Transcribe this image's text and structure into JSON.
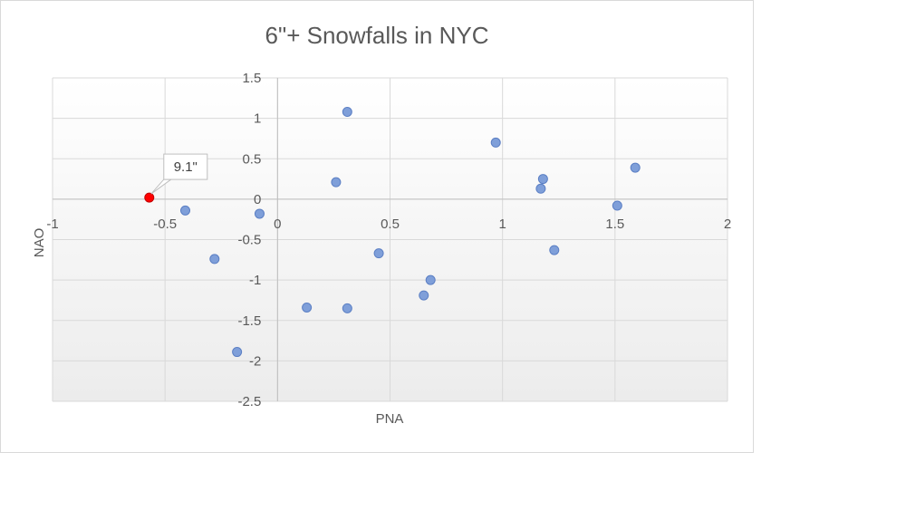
{
  "chart_data": {
    "type": "scatter",
    "title": "6\"+ Snowfalls in NYC",
    "xlabel": "PNA",
    "ylabel": "NAO",
    "xlim": [
      -1,
      2
    ],
    "ylim": [
      -2.5,
      1.5
    ],
    "x_ticks": [
      "-1",
      "-0.5",
      "0",
      "0.5",
      "1",
      "1.5",
      "2"
    ],
    "y_ticks": [
      "1.5",
      "1",
      "0.5",
      "0",
      "-0.5",
      "-1",
      "-1.5",
      "-2",
      "-2.5"
    ],
    "x_tick_values": [
      -1,
      -0.5,
      0,
      0.5,
      1,
      1.5,
      2
    ],
    "y_tick_values": [
      1.5,
      1,
      0.5,
      0,
      -0.5,
      -1,
      -1.5,
      -2,
      -2.5
    ],
    "grid": true,
    "series": [
      {
        "color": "#7f9fd9",
        "points": [
          {
            "x": -0.41,
            "y": -0.14
          },
          {
            "x": -0.08,
            "y": -0.18
          },
          {
            "x": -0.28,
            "y": -0.74
          },
          {
            "x": -0.18,
            "y": -1.89
          },
          {
            "x": 0.31,
            "y": 1.08
          },
          {
            "x": 0.26,
            "y": 0.21
          },
          {
            "x": 0.45,
            "y": -0.67
          },
          {
            "x": 0.68,
            "y": -1.0
          },
          {
            "x": 0.65,
            "y": -1.19
          },
          {
            "x": 0.13,
            "y": -1.34
          },
          {
            "x": 0.31,
            "y": -1.35
          },
          {
            "x": 0.97,
            "y": 0.7
          },
          {
            "x": 1.18,
            "y": 0.25
          },
          {
            "x": 1.17,
            "y": 0.13
          },
          {
            "x": 1.23,
            "y": -0.63
          },
          {
            "x": 1.51,
            "y": -0.08
          },
          {
            "x": 1.59,
            "y": 0.39
          }
        ]
      },
      {
        "color": "#ff0000",
        "points": [
          {
            "x": -0.57,
            "y": 0.02,
            "label": "9.1\""
          }
        ]
      }
    ]
  }
}
